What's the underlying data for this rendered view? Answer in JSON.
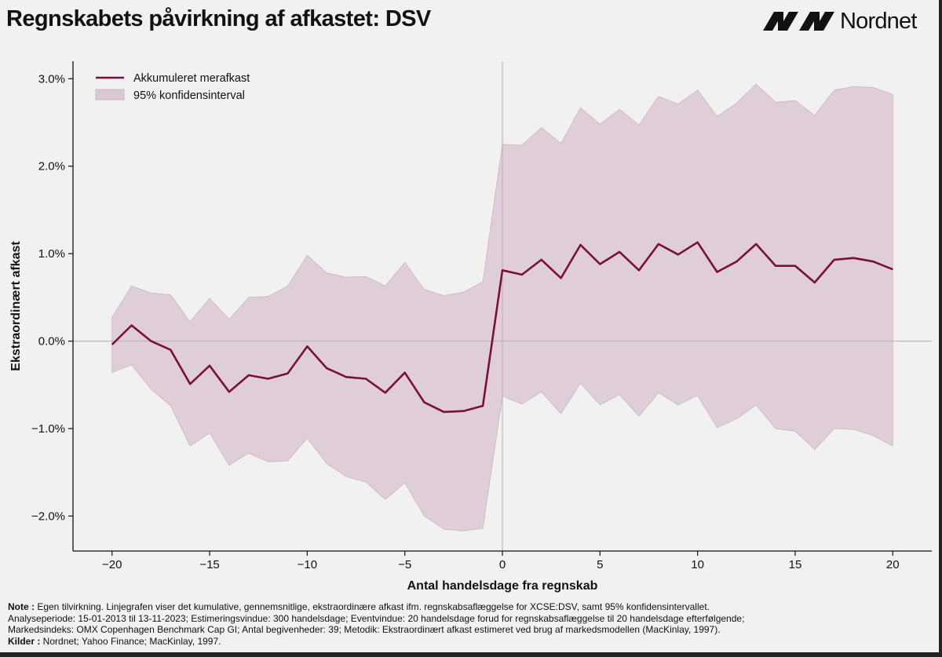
{
  "header": {
    "title": "Regnskabets påvirkning af afkastet: DSV",
    "logo_text": "Nordnet"
  },
  "colors": {
    "line": "#7a0f3f",
    "band": "#dcc8d2",
    "axis": "#111111",
    "zero_line": "#b0b0b0",
    "background": "#f1f1f1"
  },
  "chart_data": {
    "type": "line",
    "xlabel": "Antal handelsdage fra regnskab",
    "ylabel": "Ekstraordinært afkast",
    "xlim": [
      -22,
      22
    ],
    "ylim": [
      -2.4,
      3.2
    ],
    "x_ticks": [
      -20,
      -15,
      -10,
      -5,
      0,
      5,
      10,
      15,
      20
    ],
    "x_tick_labels": [
      "−20",
      "−15",
      "−10",
      "−5",
      "0",
      "5",
      "10",
      "15",
      "20"
    ],
    "y_ticks": [
      -2,
      -1,
      0,
      1,
      2,
      3
    ],
    "y_tick_labels": [
      "−2.0%",
      "−1.0%",
      "0.0%",
      "1.0%",
      "2.0%",
      "3.0%"
    ],
    "grid": false,
    "legend_position": "top-left",
    "x": [
      -20,
      -19,
      -18,
      -17,
      -16,
      -15,
      -14,
      -13,
      -12,
      -11,
      -10,
      -9,
      -8,
      -7,
      -6,
      -5,
      -4,
      -3,
      -2,
      -1,
      0,
      1,
      2,
      3,
      4,
      5,
      6,
      7,
      8,
      9,
      10,
      11,
      12,
      13,
      14,
      15,
      16,
      17,
      18,
      19,
      20
    ],
    "series": [
      {
        "name": "Akkumuleret merafkast",
        "values": [
          -0.04,
          0.18,
          0.0,
          -0.1,
          -0.49,
          -0.28,
          -0.58,
          -0.39,
          -0.43,
          -0.37,
          -0.06,
          -0.31,
          -0.41,
          -0.43,
          -0.59,
          -0.36,
          -0.7,
          -0.81,
          -0.8,
          -0.74,
          0.81,
          0.76,
          0.93,
          0.72,
          1.1,
          0.88,
          1.02,
          0.81,
          1.11,
          0.99,
          1.13,
          0.79,
          0.91,
          1.11,
          0.86,
          0.86,
          0.67,
          0.93,
          0.95,
          0.91,
          0.82
        ]
      },
      {
        "name": "95% konfidensinterval",
        "upper": [
          0.27,
          0.63,
          0.55,
          0.53,
          0.22,
          0.49,
          0.25,
          0.5,
          0.51,
          0.63,
          0.98,
          0.78,
          0.73,
          0.74,
          0.63,
          0.9,
          0.59,
          0.52,
          0.56,
          0.68,
          2.25,
          2.24,
          2.44,
          2.26,
          2.67,
          2.48,
          2.65,
          2.47,
          2.8,
          2.71,
          2.87,
          2.57,
          2.72,
          2.94,
          2.73,
          2.75,
          2.58,
          2.87,
          2.91,
          2.9,
          2.82
        ],
        "lower": [
          -0.36,
          -0.27,
          -0.55,
          -0.74,
          -1.2,
          -1.05,
          -1.42,
          -1.28,
          -1.38,
          -1.37,
          -1.11,
          -1.4,
          -1.55,
          -1.61,
          -1.81,
          -1.62,
          -2.0,
          -2.15,
          -2.17,
          -2.14,
          -0.63,
          -0.72,
          -0.58,
          -0.83,
          -0.48,
          -0.73,
          -0.61,
          -0.86,
          -0.59,
          -0.73,
          -0.62,
          -0.99,
          -0.89,
          -0.73,
          -1.0,
          -1.03,
          -1.24,
          -1.0,
          -1.01,
          -1.08,
          -1.2
        ]
      }
    ]
  },
  "notes": {
    "note_label": "Note :",
    "note_text": " Egen tilvirkning. Linjegrafen viser det kumulative, gennemsnitlige, ekstraordinære afkast ifm. regnskabsaflæggelse for XCSE:DSV, samt 95% konfidensintervallet.",
    "line2": "Analyseperiode: 15-01-2013 til 13-11-2023; Estimeringsvindue: 300 handelsdage; Eventvindue: 20 handelsdage forud for regnskabsaflæggelse til 20 handelsdage efterfølgende;",
    "line3": "Markedsindeks: OMX Copenhagen Benchmark Cap GI; Antal begivenheder: 39; Metodik: Ekstraordinært afkast estimeret ved brug af markedsmodellen (MacKinlay, 1997).",
    "sources_label": "Kilder :",
    "sources_text": " Nordnet; Yahoo Finance; MacKinlay, 1997."
  }
}
